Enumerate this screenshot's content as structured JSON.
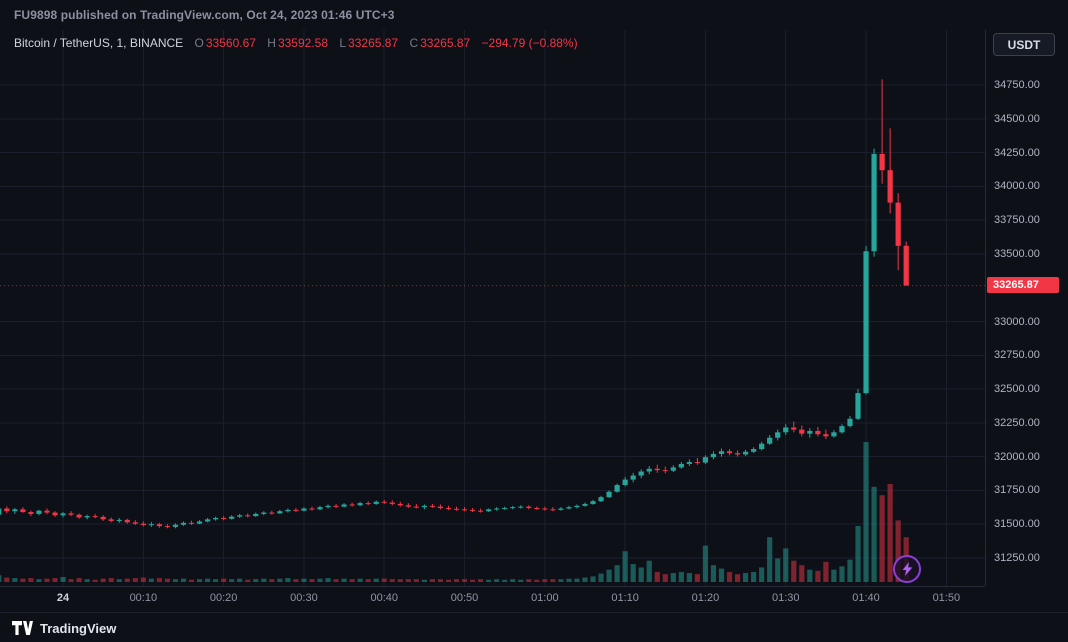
{
  "header": {
    "publication_text": "FU9898 published on TradingView.com, Oct 24, 2023 01:46 UTC+3"
  },
  "legend": {
    "symbol": "Bitcoin / TetherUS, 1, BINANCE",
    "o_label": "O",
    "o_value": "33560.67",
    "h_label": "H",
    "h_value": "33592.58",
    "l_label": "L",
    "l_value": "33265.87",
    "c_label": "C",
    "c_value": "33265.87",
    "change": "−294.79 (−0.88%)"
  },
  "toolbar": {
    "currency_button": "USDT"
  },
  "price_label": {
    "last": "33265.87"
  },
  "footer": {
    "brand": "TradingView"
  },
  "colors": {
    "background": "#0e1018",
    "grid": "#1a1f2b",
    "up": "#26a69a",
    "down": "#f23645",
    "axis_text": "#aeb4c1",
    "muted_text": "#787b86",
    "label_text": "#d1d4dc",
    "purple": "#b060f0"
  },
  "chart_data": {
    "type": "candlestick",
    "title": "Bitcoin / TetherUS, 1 minute, BINANCE",
    "interval": "1",
    "exchange": "BINANCE",
    "last_price": 33265.87,
    "volume_max": 250,
    "price_axis": {
      "min": 31050,
      "max": 35150,
      "tick_step": 250,
      "ticks": [
        34750,
        34500,
        34250,
        34000,
        33750,
        33500,
        33000,
        32750,
        32500,
        32250,
        32000,
        31750,
        31500,
        31250
      ]
    },
    "time_ticks": [
      {
        "label": "24",
        "index": 8,
        "bold": true
      },
      {
        "label": "00:10",
        "index": 18,
        "bold": false
      },
      {
        "label": "00:20",
        "index": 28,
        "bold": false
      },
      {
        "label": "00:30",
        "index": 38,
        "bold": false
      },
      {
        "label": "00:40",
        "index": 48,
        "bold": false
      },
      {
        "label": "00:50",
        "index": 58,
        "bold": false
      },
      {
        "label": "01:00",
        "index": 68,
        "bold": false
      },
      {
        "label": "01:10",
        "index": 78,
        "bold": false
      },
      {
        "label": "01:20",
        "index": 88,
        "bold": false
      },
      {
        "label": "01:30",
        "index": 98,
        "bold": false
      },
      {
        "label": "01:40",
        "index": 108,
        "bold": false
      },
      {
        "label": "01:50",
        "index": 118,
        "bold": false
      }
    ],
    "columns": [
      "time",
      "open",
      "high",
      "low",
      "close",
      "volume"
    ],
    "candles": [
      [
        "23:52",
        31570,
        31648,
        31518,
        31616,
        12
      ],
      [
        "23:53",
        31616,
        31632,
        31580,
        31596,
        8
      ],
      [
        "23:54",
        31596,
        31620,
        31576,
        31610,
        7
      ],
      [
        "23:55",
        31610,
        31626,
        31584,
        31590,
        6
      ],
      [
        "23:56",
        31590,
        31602,
        31560,
        31576,
        7
      ],
      [
        "23:57",
        31576,
        31606,
        31566,
        31600,
        5
      ],
      [
        "23:58",
        31600,
        31616,
        31574,
        31586,
        6
      ],
      [
        "23:59",
        31586,
        31596,
        31554,
        31566,
        7
      ],
      [
        "00:00",
        31566,
        31590,
        31550,
        31580,
        9
      ],
      [
        "00:01",
        31580,
        31596,
        31560,
        31570,
        5
      ],
      [
        "00:02",
        31570,
        31580,
        31540,
        31550,
        7
      ],
      [
        "00:03",
        31550,
        31570,
        31536,
        31560,
        5
      ],
      [
        "00:04",
        31560,
        31576,
        31544,
        31554,
        4
      ],
      [
        "00:05",
        31554,
        31566,
        31524,
        31536,
        6
      ],
      [
        "00:06",
        31536,
        31550,
        31514,
        31524,
        7
      ],
      [
        "00:07",
        31524,
        31546,
        31510,
        31532,
        5
      ],
      [
        "00:08",
        31532,
        31540,
        31504,
        31514,
        6
      ],
      [
        "00:09",
        31514,
        31530,
        31494,
        31504,
        7
      ],
      [
        "00:10",
        31504,
        31520,
        31484,
        31494,
        8
      ],
      [
        "00:11",
        31494,
        31516,
        31480,
        31500,
        6
      ],
      [
        "00:12",
        31500,
        31510,
        31474,
        31486,
        7
      ],
      [
        "00:13",
        31486,
        31500,
        31470,
        31480,
        6
      ],
      [
        "00:14",
        31480,
        31506,
        31470,
        31496,
        5
      ],
      [
        "00:15",
        31496,
        31520,
        31488,
        31510,
        6
      ],
      [
        "00:16",
        31510,
        31526,
        31494,
        31504,
        4
      ],
      [
        "00:17",
        31504,
        31530,
        31500,
        31520,
        5
      ],
      [
        "00:18",
        31520,
        31546,
        31514,
        31536,
        6
      ],
      [
        "00:19",
        31536,
        31556,
        31526,
        31546,
        5
      ],
      [
        "00:20",
        31546,
        31560,
        31530,
        31540,
        6
      ],
      [
        "00:21",
        31540,
        31566,
        31534,
        31556,
        5
      ],
      [
        "00:22",
        31556,
        31576,
        31546,
        31566,
        6
      ],
      [
        "00:23",
        31566,
        31580,
        31550,
        31560,
        4
      ],
      [
        "00:24",
        31560,
        31586,
        31554,
        31576,
        5
      ],
      [
        "00:25",
        31576,
        31596,
        31566,
        31586,
        6
      ],
      [
        "00:26",
        31586,
        31600,
        31570,
        31580,
        5
      ],
      [
        "00:27",
        31580,
        31606,
        31576,
        31596,
        6
      ],
      [
        "00:28",
        31596,
        31616,
        31586,
        31606,
        7
      ],
      [
        "00:29",
        31606,
        31620,
        31590,
        31600,
        5
      ],
      [
        "00:30",
        31600,
        31626,
        31594,
        31616,
        6
      ],
      [
        "00:31",
        31616,
        31630,
        31600,
        31610,
        5
      ],
      [
        "00:32",
        31610,
        31636,
        31604,
        31626,
        6
      ],
      [
        "00:33",
        31626,
        31646,
        31616,
        31636,
        7
      ],
      [
        "00:34",
        31636,
        31650,
        31620,
        31630,
        5
      ],
      [
        "00:35",
        31630,
        31656,
        31624,
        31646,
        6
      ],
      [
        "00:36",
        31646,
        31660,
        31630,
        31640,
        5
      ],
      [
        "00:37",
        31640,
        31666,
        31634,
        31656,
        6
      ],
      [
        "00:38",
        31656,
        31670,
        31640,
        31650,
        5
      ],
      [
        "00:39",
        31650,
        31676,
        31644,
        31666,
        6
      ],
      [
        "00:40",
        31666,
        31680,
        31650,
        31660,
        6
      ],
      [
        "00:41",
        31660,
        31676,
        31640,
        31650,
        5
      ],
      [
        "00:42",
        31650,
        31666,
        31630,
        31640,
        5
      ],
      [
        "00:43",
        31640,
        31656,
        31620,
        31630,
        5
      ],
      [
        "00:44",
        31630,
        31650,
        31616,
        31626,
        5
      ],
      [
        "00:45",
        31626,
        31646,
        31610,
        31636,
        4
      ],
      [
        "00:46",
        31636,
        31650,
        31620,
        31630,
        5
      ],
      [
        "00:47",
        31630,
        31646,
        31610,
        31620,
        5
      ],
      [
        "00:48",
        31620,
        31636,
        31604,
        31614,
        4
      ],
      [
        "00:49",
        31614,
        31630,
        31600,
        31610,
        5
      ],
      [
        "00:50",
        31610,
        31626,
        31596,
        31606,
        5
      ],
      [
        "00:51",
        31606,
        31620,
        31590,
        31600,
        4
      ],
      [
        "00:52",
        31600,
        31616,
        31586,
        31596,
        5
      ],
      [
        "00:53",
        31596,
        31616,
        31590,
        31610,
        4
      ],
      [
        "00:54",
        31610,
        31626,
        31600,
        31616,
        5
      ],
      [
        "00:55",
        31616,
        31630,
        31606,
        31620,
        4
      ],
      [
        "00:56",
        31620,
        31636,
        31610,
        31626,
        5
      ],
      [
        "00:57",
        31626,
        31640,
        31616,
        31630,
        4
      ],
      [
        "00:58",
        31630,
        31640,
        31610,
        31620,
        5
      ],
      [
        "00:59",
        31620,
        31630,
        31606,
        31616,
        4
      ],
      [
        "01:00",
        31616,
        31630,
        31600,
        31610,
        5
      ],
      [
        "01:01",
        31610,
        31626,
        31596,
        31606,
        5
      ],
      [
        "01:02",
        31606,
        31626,
        31600,
        31616,
        5
      ],
      [
        "01:03",
        31616,
        31636,
        31610,
        31626,
        6
      ],
      [
        "01:04",
        31626,
        31646,
        31616,
        31636,
        6
      ],
      [
        "01:05",
        31636,
        31660,
        31630,
        31650,
        8
      ],
      [
        "01:06",
        31650,
        31680,
        31644,
        31670,
        10
      ],
      [
        "01:07",
        31670,
        31710,
        31664,
        31700,
        15
      ],
      [
        "01:08",
        31700,
        31750,
        31694,
        31740,
        22
      ],
      [
        "01:09",
        31740,
        31800,
        31734,
        31790,
        30
      ],
      [
        "01:10",
        31790,
        31850,
        31780,
        31830,
        55
      ],
      [
        "01:11",
        31830,
        31880,
        31810,
        31860,
        32
      ],
      [
        "01:12",
        31860,
        31906,
        31840,
        31890,
        26
      ],
      [
        "01:13",
        31890,
        31930,
        31870,
        31910,
        38
      ],
      [
        "01:14",
        31910,
        31940,
        31880,
        31900,
        18
      ],
      [
        "01:15",
        31900,
        31926,
        31876,
        31896,
        14
      ],
      [
        "01:16",
        31896,
        31936,
        31886,
        31920,
        16
      ],
      [
        "01:17",
        31920,
        31960,
        31910,
        31946,
        18
      ],
      [
        "01:18",
        31946,
        31980,
        31930,
        31960,
        16
      ],
      [
        "01:19",
        31960,
        31990,
        31940,
        31956,
        14
      ],
      [
        "01:20",
        31956,
        32010,
        31946,
        31996,
        65
      ],
      [
        "01:21",
        31996,
        32040,
        31980,
        32020,
        30
      ],
      [
        "01:22",
        32020,
        32060,
        32000,
        32040,
        24
      ],
      [
        "01:23",
        32040,
        32056,
        32010,
        32026,
        18
      ],
      [
        "01:24",
        32026,
        32046,
        32000,
        32016,
        14
      ],
      [
        "01:25",
        32016,
        32050,
        32006,
        32036,
        16
      ],
      [
        "01:26",
        32036,
        32070,
        32026,
        32056,
        18
      ],
      [
        "01:27",
        32056,
        32110,
        32046,
        32096,
        26
      ],
      [
        "01:28",
        32096,
        32160,
        32086,
        32140,
        80
      ],
      [
        "01:29",
        32140,
        32200,
        32120,
        32180,
        42
      ],
      [
        "01:30",
        32180,
        32240,
        32160,
        32216,
        60
      ],
      [
        "01:31",
        32216,
        32260,
        32180,
        32200,
        38
      ],
      [
        "01:32",
        32200,
        32230,
        32150,
        32170,
        30
      ],
      [
        "01:33",
        32170,
        32210,
        32140,
        32190,
        22
      ],
      [
        "01:34",
        32190,
        32220,
        32150,
        32166,
        20
      ],
      [
        "01:35",
        32166,
        32200,
        32130,
        32150,
        36
      ],
      [
        "01:36",
        32150,
        32196,
        32140,
        32180,
        22
      ],
      [
        "01:37",
        32180,
        32240,
        32170,
        32226,
        28
      ],
      [
        "01:38",
        32226,
        32300,
        32216,
        32280,
        40
      ],
      [
        "01:39",
        32280,
        32500,
        32270,
        32470,
        100
      ],
      [
        "01:40",
        32470,
        33560,
        32460,
        33520,
        250
      ],
      [
        "01:41",
        33520,
        34280,
        33480,
        34240,
        170
      ],
      [
        "01:42",
        34240,
        34792,
        34020,
        34120,
        155
      ],
      [
        "01:43",
        34120,
        34430,
        33800,
        33880,
        175
      ],
      [
        "01:44",
        33880,
        33950,
        33380,
        33560,
        110
      ],
      [
        "01:45",
        33560.67,
        33592.58,
        33265.87,
        33265.87,
        80
      ]
    ]
  }
}
